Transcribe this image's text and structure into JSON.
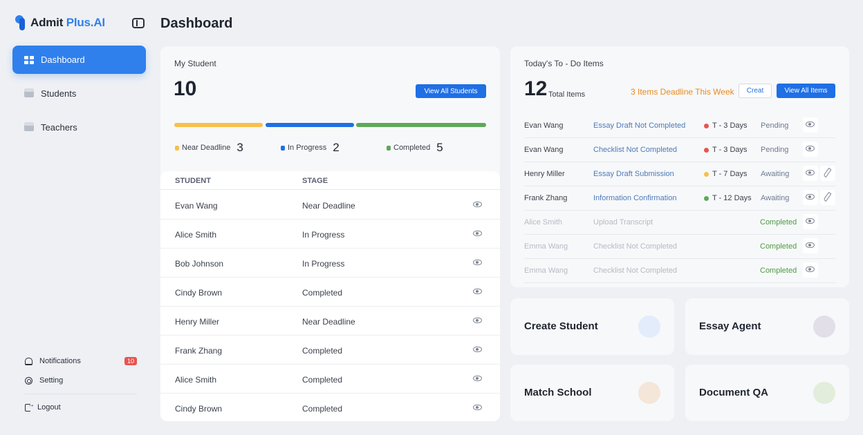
{
  "brand": {
    "name_prefix": "Admit",
    "name_accent": "Plus.AI"
  },
  "page_title": "Dashboard",
  "sidebar": {
    "items": [
      {
        "label": "Dashboard",
        "icon": "dashboard-grid-icon",
        "active": true
      },
      {
        "label": "Students",
        "icon": "book-icon",
        "active": false
      },
      {
        "label": "Teachers",
        "icon": "book-icon",
        "active": false
      }
    ],
    "notifications": {
      "label": "Notifications",
      "count": "10",
      "icon": "bell-icon"
    },
    "setting": {
      "label": "Setting",
      "icon": "gear-icon"
    },
    "logout": {
      "label": "Logout",
      "icon": "logout-icon"
    }
  },
  "my_student": {
    "title": "My Student",
    "count": "10",
    "view_all_label": "View All Students",
    "legend": [
      {
        "label": "Near Deadline",
        "value": "3",
        "color": "#f7c04a"
      },
      {
        "label": "In Progress",
        "value": "2",
        "color": "#1f6fe5"
      },
      {
        "label": "Completed",
        "value": "5",
        "color": "#5fa85a"
      }
    ],
    "columns": {
      "student": "STUDENT",
      "stage": "STAGE"
    },
    "rows": [
      {
        "student": "Evan Wang",
        "stage": "Near Deadline"
      },
      {
        "student": "Alice Smith",
        "stage": "In Progress"
      },
      {
        "student": "Bob Johnson",
        "stage": "In Progress"
      },
      {
        "student": "Cindy Brown",
        "stage": "Completed"
      },
      {
        "student": "Henry Miller",
        "stage": "Near Deadline"
      },
      {
        "student": "Frank Zhang",
        "stage": "Completed"
      },
      {
        "student": "Alice Smith",
        "stage": "Completed"
      },
      {
        "student": "Cindy Brown",
        "stage": "Completed"
      }
    ]
  },
  "todo": {
    "title": "Today's To - Do Items",
    "count": "12",
    "total_label": "Total Items",
    "deadline_text": "3 Items Deadline This Week",
    "create_label": "Creat",
    "view_all_label": "View All Items",
    "rows": [
      {
        "name": "Evan Wang",
        "task": "Essay Draft Not Completed",
        "due": "T - 3 Days",
        "due_color": "#e8544f",
        "status": "Pending",
        "editable": false,
        "done": false
      },
      {
        "name": "Evan Wang",
        "task": "Checklist Not Completed",
        "due": "T - 3 Days",
        "due_color": "#e8544f",
        "status": "Pending",
        "editable": false,
        "done": false
      },
      {
        "name": "Henry Miller",
        "task": "Essay Draft Submission",
        "due": "T - 7 Days",
        "due_color": "#f7c04a",
        "status": "Awaiting",
        "editable": true,
        "done": false
      },
      {
        "name": "Frank Zhang",
        "task": "Information Confirmation",
        "due": "T - 12 Days",
        "due_color": "#5fa85a",
        "status": "Awaiting",
        "editable": true,
        "done": false
      },
      {
        "name": "Alice Smith",
        "task": "Upload Transcript",
        "due": "",
        "due_color": "",
        "status": "Completed",
        "editable": false,
        "done": true
      },
      {
        "name": "Emma Wang",
        "task": "Checklist Not Completed",
        "due": "",
        "due_color": "",
        "status": "Completed",
        "editable": false,
        "done": true
      },
      {
        "name": "Emma Wang",
        "task": "Checklist Not Completed",
        "due": "",
        "due_color": "",
        "status": "Completed",
        "editable": false,
        "done": true
      }
    ]
  },
  "features": [
    {
      "label": "Create Student",
      "color": "#e3ecfa"
    },
    {
      "label": "Essay Agent",
      "color": "#e2dfe9"
    },
    {
      "label": "Match School",
      "color": "#f4e6d8"
    },
    {
      "label": "Document QA",
      "color": "#e2eddc"
    }
  ]
}
